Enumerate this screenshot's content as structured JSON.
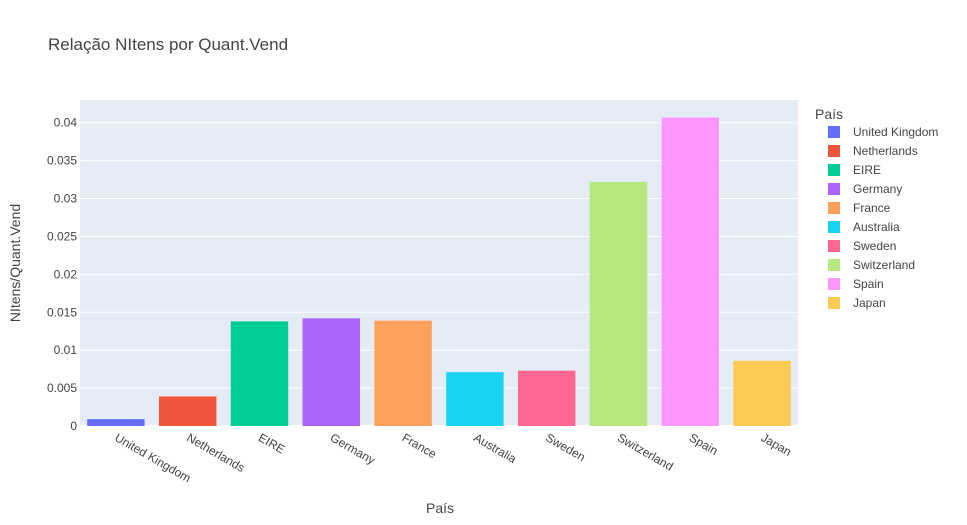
{
  "chart_data": {
    "type": "bar",
    "title": "Relação NItens por Quant.Vend",
    "xlabel": "País",
    "ylabel": "NItens/Quant.Vend",
    "categories": [
      "United Kingdom",
      "Netherlands",
      "EIRE",
      "Germany",
      "France",
      "Australia",
      "Sweden",
      "Switzerland",
      "Spain",
      "Japan"
    ],
    "values": [
      0.0009,
      0.0039,
      0.0138,
      0.0142,
      0.0139,
      0.0071,
      0.0073,
      0.0322,
      0.0407,
      0.0086
    ],
    "colors": [
      "#636efa",
      "#EF553B",
      "#00cc96",
      "#ab63fa",
      "#FFA15A",
      "#19d3f3",
      "#FF6692",
      "#B6E880",
      "#FF97FF",
      "#FECB52"
    ],
    "ylim": [
      0,
      0.043
    ],
    "yticks": [
      0,
      0.005,
      0.01,
      0.015,
      0.02,
      0.025,
      0.03,
      0.035,
      0.04
    ],
    "ytick_labels": [
      "0",
      "0.005",
      "0.01",
      "0.015",
      "0.02",
      "0.025",
      "0.03",
      "0.035",
      "0.04"
    ],
    "grid": true,
    "plot_bg": "#e5ecf6",
    "legend": {
      "title": "País",
      "placement": "right",
      "entries": [
        "United Kingdom",
        "Netherlands",
        "EIRE",
        "Germany",
        "France",
        "Australia",
        "Sweden",
        "Switzerland",
        "Spain",
        "Japan"
      ]
    }
  }
}
